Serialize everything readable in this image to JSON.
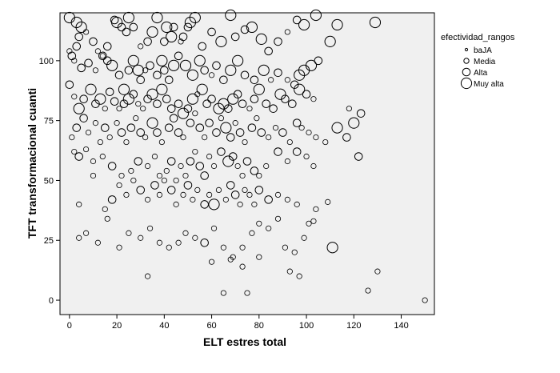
{
  "chart_data": {
    "type": "scatter",
    "xlabel": "ELT estres total",
    "ylabel": "TFT transformacional cuanti",
    "xlim": [
      -4,
      154
    ],
    "ylim": [
      -6,
      120
    ],
    "xticks": [
      "0",
      "20",
      "40",
      "60",
      "80",
      "100",
      "120",
      "140"
    ],
    "yticks": [
      "0",
      "25",
      "50",
      "75",
      "100"
    ],
    "grid": false,
    "legend_title": "efectividad_rangos",
    "legend_position": "right",
    "categories": [
      "baJA",
      "Media",
      "Alta",
      "Muy alta"
    ],
    "marker_radius": [
      1.6,
      3.2,
      4.8,
      6.6
    ],
    "points": [
      [
        0,
        118,
        3
      ],
      [
        3,
        116,
        3
      ],
      [
        4,
        110,
        2
      ],
      [
        5,
        114,
        3
      ],
      [
        3,
        106,
        2
      ],
      [
        7,
        112,
        1
      ],
      [
        10,
        108,
        2
      ],
      [
        12,
        104,
        1
      ],
      [
        14,
        102,
        2
      ],
      [
        16,
        106,
        2
      ],
      [
        19,
        117,
        2
      ],
      [
        20,
        116,
        3
      ],
      [
        22,
        114,
        2
      ],
      [
        24,
        112,
        2
      ],
      [
        25,
        118,
        3
      ],
      [
        27,
        114,
        2
      ],
      [
        30,
        106,
        1
      ],
      [
        33,
        108,
        2
      ],
      [
        35,
        112,
        3
      ],
      [
        37,
        118,
        3
      ],
      [
        40,
        108,
        2
      ],
      [
        41,
        114,
        3
      ],
      [
        43,
        110,
        3
      ],
      [
        44,
        114,
        2
      ],
      [
        47,
        108,
        1
      ],
      [
        48,
        110,
        2
      ],
      [
        50,
        114,
        2
      ],
      [
        51,
        116,
        3
      ],
      [
        53,
        118,
        3
      ],
      [
        56,
        106,
        2
      ],
      [
        60,
        112,
        2
      ],
      [
        64,
        108,
        3
      ],
      [
        68,
        119,
        3
      ],
      [
        70,
        110,
        2
      ],
      [
        74,
        113,
        2
      ],
      [
        77,
        114,
        3
      ],
      [
        81,
        109,
        3
      ],
      [
        84,
        104,
        2
      ],
      [
        88,
        108,
        2
      ],
      [
        92,
        112,
        1
      ],
      [
        96,
        117,
        2
      ],
      [
        99,
        115,
        3
      ],
      [
        104,
        119,
        3
      ],
      [
        110,
        108,
        3
      ],
      [
        113,
        115,
        3
      ],
      [
        129,
        116,
        3
      ],
      [
        0,
        104,
        1
      ],
      [
        1,
        102,
        2
      ],
      [
        2,
        100,
        1
      ],
      [
        5,
        97,
        2
      ],
      [
        8,
        99,
        2
      ],
      [
        11,
        96,
        1
      ],
      [
        14,
        102,
        1
      ],
      [
        16,
        100,
        2
      ],
      [
        18,
        98,
        3
      ],
      [
        21,
        94,
        2
      ],
      [
        23,
        88,
        3
      ],
      [
        25,
        96,
        2
      ],
      [
        27,
        100,
        3
      ],
      [
        29,
        96,
        3
      ],
      [
        30,
        92,
        2
      ],
      [
        32,
        96,
        1
      ],
      [
        34,
        98,
        2
      ],
      [
        37,
        94,
        2
      ],
      [
        39,
        100,
        3
      ],
      [
        40,
        96,
        2
      ],
      [
        42,
        92,
        2
      ],
      [
        44,
        98,
        3
      ],
      [
        46,
        102,
        2
      ],
      [
        49,
        98,
        3
      ],
      [
        52,
        94,
        3
      ],
      [
        55,
        100,
        3
      ],
      [
        57,
        96,
        2
      ],
      [
        60,
        94,
        1
      ],
      [
        62,
        98,
        2
      ],
      [
        65,
        92,
        2
      ],
      [
        68,
        96,
        3
      ],
      [
        71,
        100,
        3
      ],
      [
        74,
        94,
        2
      ],
      [
        78,
        92,
        2
      ],
      [
        82,
        96,
        3
      ],
      [
        85,
        92,
        1
      ],
      [
        88,
        95,
        2
      ],
      [
        92,
        92,
        1
      ],
      [
        95,
        90,
        2
      ],
      [
        97,
        94,
        3
      ],
      [
        99,
        96,
        3
      ],
      [
        102,
        98,
        3
      ],
      [
        105,
        100,
        2
      ],
      [
        0,
        90,
        2
      ],
      [
        2,
        85,
        1
      ],
      [
        4,
        80,
        3
      ],
      [
        6,
        84,
        2
      ],
      [
        9,
        88,
        3
      ],
      [
        11,
        82,
        2
      ],
      [
        13,
        84,
        3
      ],
      [
        15,
        80,
        1
      ],
      [
        17,
        87,
        2
      ],
      [
        19,
        83,
        2
      ],
      [
        21,
        80,
        1
      ],
      [
        23,
        82,
        2
      ],
      [
        25,
        84,
        3
      ],
      [
        27,
        86,
        2
      ],
      [
        29,
        82,
        1
      ],
      [
        31,
        80,
        1
      ],
      [
        33,
        84,
        2
      ],
      [
        35,
        86,
        3
      ],
      [
        37,
        82,
        2
      ],
      [
        39,
        88,
        3
      ],
      [
        41,
        84,
        2
      ],
      [
        43,
        80,
        2
      ],
      [
        46,
        82,
        2
      ],
      [
        48,
        78,
        3
      ],
      [
        50,
        80,
        2
      ],
      [
        52,
        84,
        3
      ],
      [
        54,
        86,
        1
      ],
      [
        56,
        88,
        3
      ],
      [
        58,
        82,
        2
      ],
      [
        60,
        84,
        2
      ],
      [
        63,
        80,
        3
      ],
      [
        65,
        82,
        3
      ],
      [
        67,
        80,
        2
      ],
      [
        69,
        84,
        3
      ],
      [
        71,
        86,
        2
      ],
      [
        73,
        82,
        2
      ],
      [
        76,
        80,
        1
      ],
      [
        78,
        84,
        2
      ],
      [
        80,
        88,
        3
      ],
      [
        83,
        82,
        2
      ],
      [
        86,
        80,
        2
      ],
      [
        89,
        86,
        3
      ],
      [
        91,
        84,
        2
      ],
      [
        94,
        82,
        2
      ],
      [
        97,
        88,
        3
      ],
      [
        100,
        86,
        2
      ],
      [
        103,
        84,
        1
      ],
      [
        1,
        68,
        1
      ],
      [
        3,
        72,
        2
      ],
      [
        6,
        76,
        2
      ],
      [
        8,
        70,
        1
      ],
      [
        11,
        74,
        1
      ],
      [
        13,
        66,
        1
      ],
      [
        15,
        72,
        2
      ],
      [
        17,
        68,
        1
      ],
      [
        20,
        74,
        1
      ],
      [
        22,
        70,
        2
      ],
      [
        24,
        66,
        1
      ],
      [
        26,
        72,
        2
      ],
      [
        28,
        76,
        1
      ],
      [
        30,
        70,
        2
      ],
      [
        32,
        68,
        1
      ],
      [
        35,
        74,
        3
      ],
      [
        37,
        70,
        2
      ],
      [
        39,
        66,
        1
      ],
      [
        42,
        72,
        2
      ],
      [
        44,
        76,
        2
      ],
      [
        46,
        70,
        2
      ],
      [
        48,
        68,
        1
      ],
      [
        51,
        74,
        2
      ],
      [
        53,
        78,
        1
      ],
      [
        55,
        72,
        2
      ],
      [
        57,
        68,
        1
      ],
      [
        59,
        74,
        2
      ],
      [
        62,
        70,
        2
      ],
      [
        64,
        76,
        1
      ],
      [
        66,
        72,
        3
      ],
      [
        68,
        68,
        2
      ],
      [
        70,
        74,
        1
      ],
      [
        72,
        70,
        2
      ],
      [
        74,
        66,
        1
      ],
      [
        77,
        72,
        2
      ],
      [
        79,
        76,
        1
      ],
      [
        81,
        70,
        2
      ],
      [
        84,
        68,
        1
      ],
      [
        87,
        72,
        1
      ],
      [
        90,
        70,
        2
      ],
      [
        93,
        66,
        1
      ],
      [
        96,
        74,
        2
      ],
      [
        98,
        72,
        1
      ],
      [
        101,
        70,
        1
      ],
      [
        104,
        68,
        1
      ],
      [
        108,
        66,
        1
      ],
      [
        113,
        72,
        3
      ],
      [
        117,
        68,
        2
      ],
      [
        120,
        74,
        3
      ],
      [
        123,
        78,
        2
      ],
      [
        122,
        60,
        2
      ],
      [
        118,
        80,
        1
      ],
      [
        2,
        62,
        1
      ],
      [
        4,
        60,
        2
      ],
      [
        7,
        63,
        1
      ],
      [
        10,
        58,
        1
      ],
      [
        14,
        60,
        1
      ],
      [
        18,
        56,
        2
      ],
      [
        22,
        52,
        1
      ],
      [
        26,
        54,
        1
      ],
      [
        29,
        58,
        2
      ],
      [
        33,
        56,
        1
      ],
      [
        36,
        60,
        1
      ],
      [
        38,
        52,
        1
      ],
      [
        41,
        54,
        1
      ],
      [
        43,
        58,
        2
      ],
      [
        45,
        50,
        1
      ],
      [
        47,
        56,
        1
      ],
      [
        49,
        52,
        1
      ],
      [
        51,
        58,
        2
      ],
      [
        53,
        62,
        1
      ],
      [
        55,
        56,
        2
      ],
      [
        57,
        52,
        2
      ],
      [
        59,
        60,
        1
      ],
      [
        61,
        56,
        1
      ],
      [
        64,
        62,
        2
      ],
      [
        67,
        58,
        3
      ],
      [
        69,
        60,
        2
      ],
      [
        71,
        56,
        1
      ],
      [
        73,
        52,
        1
      ],
      [
        75,
        58,
        2
      ],
      [
        78,
        54,
        2
      ],
      [
        80,
        52,
        1
      ],
      [
        83,
        56,
        1
      ],
      [
        88,
        62,
        2
      ],
      [
        92,
        58,
        1
      ],
      [
        96,
        62,
        2
      ],
      [
        100,
        60,
        1
      ],
      [
        103,
        56,
        1
      ],
      [
        4,
        40,
        1
      ],
      [
        10,
        52,
        1
      ],
      [
        15,
        38,
        1
      ],
      [
        18,
        42,
        2
      ],
      [
        21,
        48,
        1
      ],
      [
        24,
        44,
        1
      ],
      [
        27,
        50,
        1
      ],
      [
        30,
        46,
        2
      ],
      [
        33,
        42,
        1
      ],
      [
        36,
        48,
        2
      ],
      [
        38,
        44,
        1
      ],
      [
        40,
        50,
        1
      ],
      [
        43,
        46,
        2
      ],
      [
        45,
        40,
        1
      ],
      [
        48,
        44,
        1
      ],
      [
        50,
        48,
        2
      ],
      [
        52,
        42,
        1
      ],
      [
        54,
        46,
        1
      ],
      [
        57,
        40,
        2
      ],
      [
        59,
        44,
        1
      ],
      [
        61,
        40,
        3
      ],
      [
        63,
        46,
        1
      ],
      [
        66,
        42,
        1
      ],
      [
        68,
        48,
        2
      ],
      [
        70,
        44,
        2
      ],
      [
        72,
        40,
        1
      ],
      [
        74,
        46,
        1
      ],
      [
        76,
        44,
        1
      ],
      [
        78,
        40,
        1
      ],
      [
        80,
        46,
        2
      ],
      [
        84,
        42,
        2
      ],
      [
        88,
        44,
        1
      ],
      [
        92,
        42,
        1
      ],
      [
        96,
        40,
        1
      ],
      [
        101,
        32,
        1
      ],
      [
        104,
        38,
        1
      ],
      [
        109,
        41,
        1
      ],
      [
        4,
        26,
        1
      ],
      [
        7,
        28,
        1
      ],
      [
        12,
        24,
        1
      ],
      [
        16,
        34,
        1
      ],
      [
        21,
        22,
        1
      ],
      [
        25,
        28,
        1
      ],
      [
        30,
        26,
        1
      ],
      [
        34,
        30,
        1
      ],
      [
        38,
        24,
        1
      ],
      [
        42,
        22,
        1
      ],
      [
        46,
        24,
        1
      ],
      [
        49,
        28,
        1
      ],
      [
        53,
        26,
        1
      ],
      [
        57,
        24,
        2
      ],
      [
        61,
        30,
        1
      ],
      [
        65,
        22,
        1
      ],
      [
        69,
        18,
        1
      ],
      [
        73,
        22,
        1
      ],
      [
        77,
        28,
        1
      ],
      [
        80,
        32,
        1
      ],
      [
        84,
        30,
        1
      ],
      [
        88,
        34,
        1
      ],
      [
        91,
        22,
        1
      ],
      [
        95,
        20,
        1
      ],
      [
        99,
        26,
        1
      ],
      [
        103,
        33,
        1
      ],
      [
        111,
        22,
        3
      ],
      [
        33,
        10,
        1
      ],
      [
        60,
        16,
        1
      ],
      [
        65,
        3,
        1
      ],
      [
        68,
        17,
        1
      ],
      [
        73,
        14,
        1
      ],
      [
        75,
        3,
        1
      ],
      [
        80,
        18,
        1
      ],
      [
        93,
        12,
        1
      ],
      [
        97,
        10,
        1
      ],
      [
        126,
        4,
        1
      ],
      [
        130,
        12,
        1
      ],
      [
        150,
        0,
        1
      ]
    ]
  }
}
